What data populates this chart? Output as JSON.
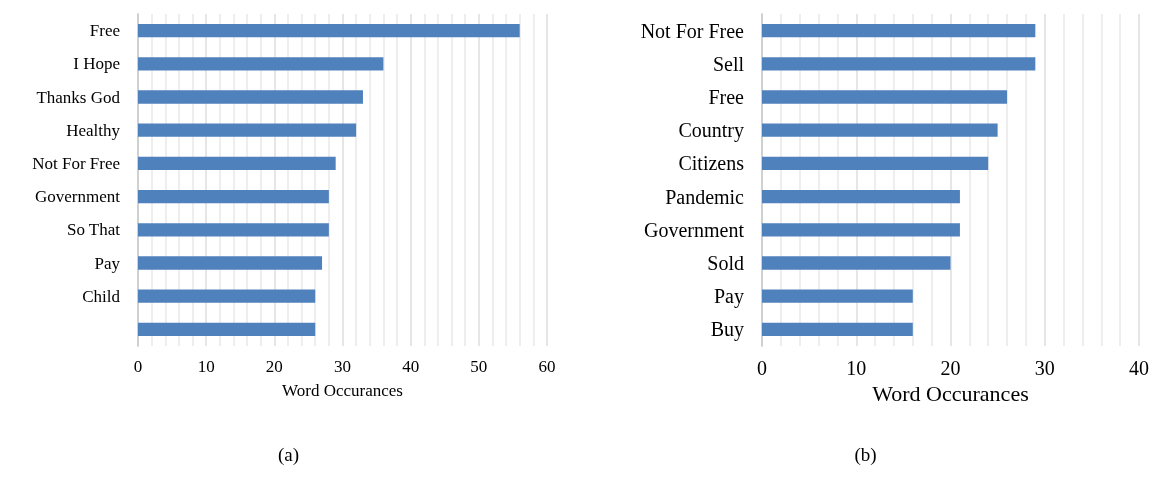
{
  "chart_data": [
    {
      "type": "bar",
      "orientation": "horizontal",
      "categories": [
        "Free",
        "I Hope",
        "Thanks God",
        "Healthy",
        "Not For Free",
        "Government",
        "So That",
        "Pay",
        "Child",
        null
      ],
      "values": [
        56,
        36,
        33,
        32,
        29,
        28,
        28,
        27,
        26,
        26
      ],
      "color": "#4f81bd",
      "xlim": [
        0,
        60
      ],
      "xticks": [
        0,
        10,
        20,
        30,
        40,
        50,
        60
      ],
      "xlabel": "Word Occurances",
      "grid": "x",
      "annotations": [
        "(a)"
      ]
    },
    {
      "type": "bar",
      "orientation": "horizontal",
      "categories": [
        "Not For Free",
        "Sell",
        "Free",
        "Country",
        "Citizens",
        "Pandemic",
        "Government",
        "Sold",
        "Pay",
        "Buy"
      ],
      "values": [
        29,
        29,
        26,
        25,
        24,
        21,
        21,
        20,
        16,
        16
      ],
      "color": "#4f81bd",
      "xlim": [
        0,
        40
      ],
      "xticks": [
        0,
        10,
        20,
        30,
        40
      ],
      "xlabel": "Word Occurances",
      "grid": "x",
      "annotations": [
        "(b)"
      ]
    }
  ]
}
